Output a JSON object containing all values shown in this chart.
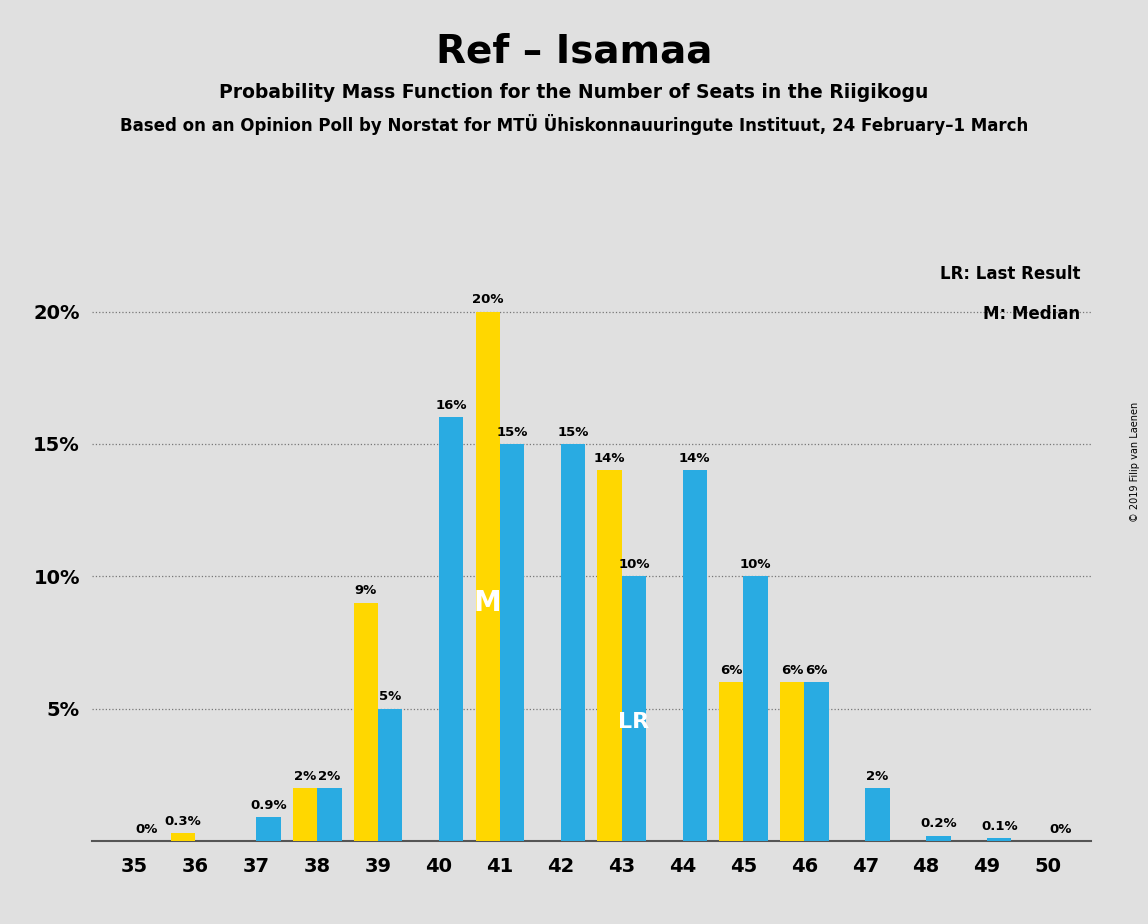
{
  "seats": [
    35,
    36,
    37,
    38,
    39,
    40,
    41,
    42,
    43,
    44,
    45,
    46,
    47,
    48,
    49,
    50
  ],
  "blue_values": [
    0.0,
    0.0,
    0.9,
    2.0,
    5.0,
    16.0,
    15.0,
    15.0,
    10.0,
    14.0,
    10.0,
    6.0,
    2.0,
    0.2,
    0.1,
    0.0
  ],
  "yellow_values": [
    0.0,
    0.3,
    0.0,
    2.0,
    9.0,
    0.0,
    20.0,
    0.0,
    14.0,
    0.0,
    6.0,
    6.0,
    0.0,
    0.0,
    0.0,
    0.0
  ],
  "blue_color": "#29ABE2",
  "yellow_color": "#FFD700",
  "background_color": "#E0E0E0",
  "title": "Ref – Isamaa",
  "subtitle": "Probability Mass Function for the Number of Seats in the Riigikogu",
  "source_line": "Based on an Opinion Poll by Norstat for MTÜ Ühiskonnauuringute Instituut, 24 February–1 March",
  "copyright": "© 2019 Filip van Laenen",
  "lr_label": "LR: Last Result",
  "m_label": "M: Median",
  "ylim_max": 22,
  "ytick_vals": [
    5,
    10,
    15,
    20
  ],
  "ytick_labels": [
    "5%",
    "10%",
    "15%",
    "20%"
  ],
  "median_seat": 41,
  "lr_seat": 43,
  "blue_bar_labels": {
    "35": "0%",
    "36": "",
    "37": "0.9%",
    "38": "2%",
    "39": "5%",
    "40": "16%",
    "41": "15%",
    "42": "15%",
    "43": "10%",
    "44": "14%",
    "45": "10%",
    "46": "6%",
    "47": "2%",
    "48": "0.2%",
    "49": "0.1%",
    "50": "0%"
  },
  "yellow_bar_labels": {
    "35": "",
    "36": "0.3%",
    "37": "",
    "38": "2%",
    "39": "9%",
    "40": "",
    "41": "20%",
    "42": "",
    "43": "14%",
    "44": "",
    "45": "6%",
    "46": "6%",
    "47": "",
    "48": "",
    "49": "",
    "50": ""
  }
}
